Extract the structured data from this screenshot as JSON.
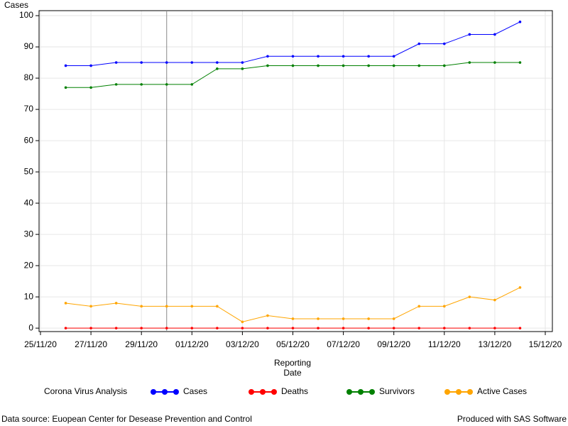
{
  "chart_data": {
    "type": "line",
    "y_label": "Cases",
    "x_label": "Reporting Date",
    "x": [
      "26/11/20",
      "27/11/20",
      "28/11/20",
      "29/11/20",
      "30/11/20",
      "01/12/20",
      "02/12/20",
      "03/12/20",
      "04/12/20",
      "05/12/20",
      "06/12/20",
      "07/12/20",
      "08/12/20",
      "09/12/20",
      "10/12/20",
      "11/12/20",
      "12/12/20",
      "13/12/20",
      "14/12/20"
    ],
    "series": [
      {
        "name": "Cases",
        "color": "#0000ff",
        "values": [
          84,
          84,
          85,
          85,
          85,
          85,
          85,
          85,
          87,
          87,
          87,
          87,
          87,
          87,
          91,
          91,
          94,
          94,
          98
        ]
      },
      {
        "name": "Deaths",
        "color": "#ff0000",
        "values": [
          0,
          0,
          0,
          0,
          0,
          0,
          0,
          0,
          0,
          0,
          0,
          0,
          0,
          0,
          0,
          0,
          0,
          0,
          0
        ]
      },
      {
        "name": "Survivors",
        "color": "#008000",
        "values": [
          77,
          77,
          78,
          78,
          78,
          78,
          83,
          83,
          84,
          84,
          84,
          84,
          84,
          84,
          84,
          84,
          85,
          85,
          85
        ]
      },
      {
        "name": "Active Cases",
        "color": "#ffa500",
        "values": [
          8,
          7,
          8,
          7,
          7,
          7,
          7,
          2,
          4,
          3,
          3,
          3,
          3,
          3,
          7,
          7,
          10,
          9,
          13
        ]
      }
    ],
    "xlim": [
      "25/11/20",
      "15/12/20"
    ],
    "xticks": [
      "25/11/20",
      "27/11/20",
      "29/11/20",
      "01/12/20",
      "03/12/20",
      "05/12/20",
      "07/12/20",
      "09/12/20",
      "11/12/20",
      "13/12/20",
      "15/12/20"
    ],
    "ylim": [
      -1.1,
      101.6
    ],
    "yticks": [
      0,
      10,
      20,
      30,
      40,
      50,
      60,
      70,
      80,
      90,
      100
    ],
    "grid": true,
    "reference_x": "30/11/20",
    "legend_title": "Corona Virus Analysis",
    "footnote_left": "Data source: Euopean Center for Desease Prevention and Control",
    "footnote_right": "Produced with SAS Software"
  }
}
